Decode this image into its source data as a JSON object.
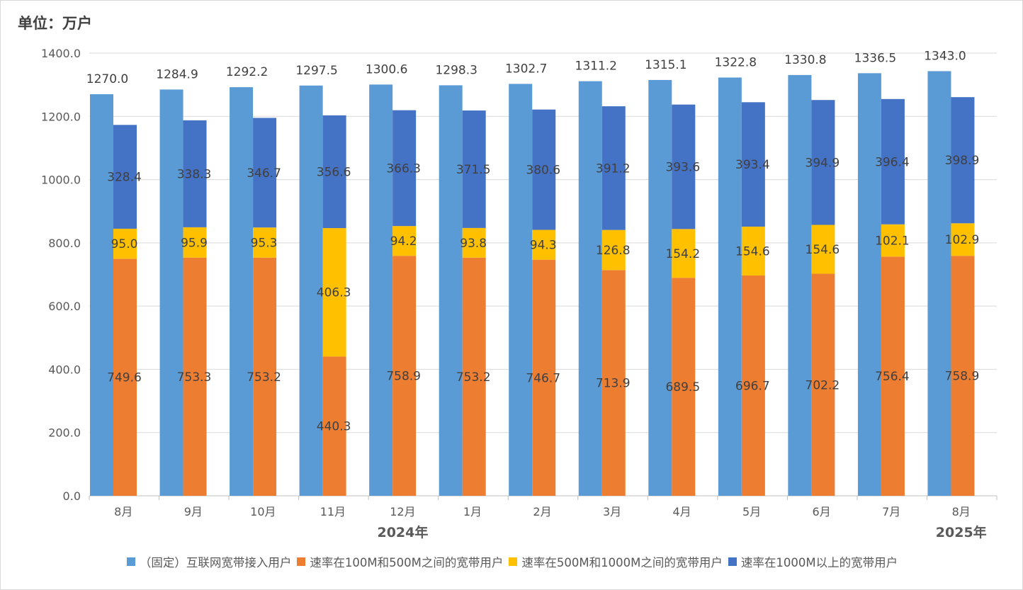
{
  "unit_label": "单位：万户",
  "chart_data": {
    "type": "bar",
    "categories": [
      "8月",
      "9月",
      "10月",
      "11月",
      "12月",
      "1月",
      "2月",
      "3月",
      "4月",
      "5月",
      "6月",
      "7月",
      "8月"
    ],
    "year_labels": [
      {
        "label": "2024年",
        "category_index": 4
      },
      {
        "label": "2025年",
        "category_index": 12
      }
    ],
    "ylim": [
      0,
      1400
    ],
    "yticks": [
      "0.0",
      "200.0",
      "400.0",
      "600.0",
      "800.0",
      "1000.0",
      "1200.0",
      "1400.0"
    ],
    "ytick_values": [
      0,
      200,
      400,
      600,
      800,
      1000,
      1200,
      1400
    ],
    "grid": true,
    "legend_position": "bottom",
    "series": [
      {
        "name": "（固定）互联网宽带接入用户",
        "color": "#5b9bd5",
        "stack": "total",
        "values": [
          1270.0,
          1284.9,
          1292.2,
          1297.5,
          1300.6,
          1298.3,
          1302.7,
          1311.2,
          1315.1,
          1322.8,
          1330.8,
          1336.5,
          1343.0
        ],
        "labels": [
          "1270.0",
          "1284.9",
          "1292.2",
          "1297.5",
          "1300.6",
          "1298.3",
          "1302.7",
          "1311.2",
          "1315.1",
          "1322.8",
          "1330.8",
          "1336.5",
          "1343.0"
        ]
      },
      {
        "name": "速率在100M和500M之间的宽带用户",
        "color": "#ed7d31",
        "stack": "speed",
        "values": [
          749.6,
          753.3,
          753.2,
          440.3,
          758.9,
          753.2,
          746.7,
          713.9,
          689.5,
          696.7,
          702.2,
          756.4,
          758.9
        ],
        "labels": [
          "749.6",
          "753.3",
          "753.2",
          "440.3",
          "758.9",
          "753.2",
          "746.7",
          "713.9",
          "689.5",
          "696.7",
          "702.2",
          "756.4",
          "758.9"
        ]
      },
      {
        "name": "速率在500M和1000M之间的宽带用户",
        "color": "#ffc000",
        "stack": "speed",
        "values": [
          95.0,
          95.9,
          95.3,
          406.3,
          94.2,
          93.8,
          94.3,
          126.8,
          154.2,
          154.6,
          154.6,
          102.1,
          102.9
        ],
        "labels": [
          "95.0",
          "95.9",
          "95.3",
          "406.3",
          "94.2",
          "93.8",
          "94.3",
          "126.8",
          "154.2",
          "154.6",
          "154.6",
          "102.1",
          "102.9"
        ]
      },
      {
        "name": "速率在1000M以上的宽带用户",
        "color": "#4472c4",
        "stack": "speed",
        "values": [
          328.4,
          338.3,
          346.7,
          356.6,
          366.3,
          371.5,
          380.6,
          391.2,
          393.6,
          393.4,
          394.9,
          396.4,
          398.9
        ],
        "labels": [
          "328.4",
          "338.3",
          "346.7",
          "356.6",
          "366.3",
          "371.5",
          "380.6",
          "391.2",
          "393.6",
          "393.4",
          "394.9",
          "396.4",
          "398.9"
        ]
      }
    ]
  }
}
